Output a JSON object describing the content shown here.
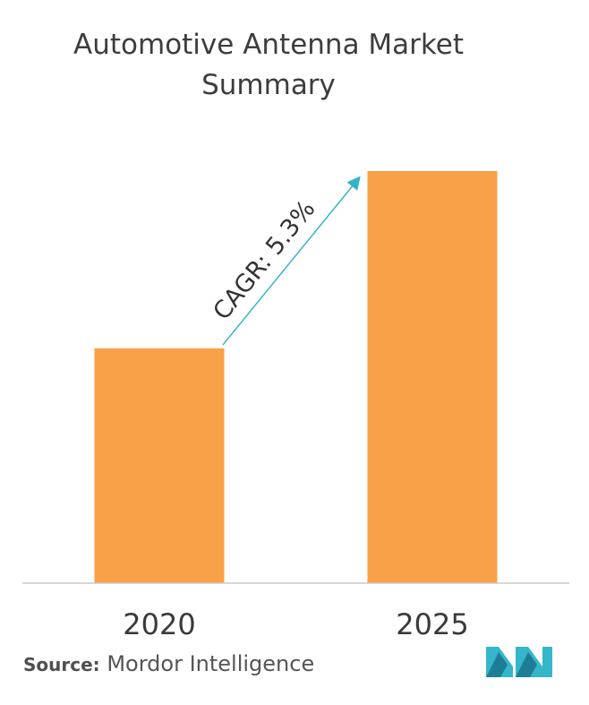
{
  "title": "Automotive Antenna Market Summary",
  "source": {
    "label": "Source:",
    "text": "Mordor Intelligence"
  },
  "annotation": "CAGR: 5.3%",
  "colors": {
    "bar": "#f9a148",
    "arrow": "#33b4c9",
    "axis": "#cccccc",
    "logo": "#35b6cb"
  },
  "icons": {
    "logo": "mordor-intelligence-logo"
  },
  "chart_data": {
    "type": "bar",
    "categories": [
      "2020",
      "2025"
    ],
    "values": [
      0.57,
      1.0
    ],
    "title": "Automotive Antenna Market Summary",
    "xlabel": "",
    "ylabel": "",
    "ylim": [
      0,
      1.0
    ],
    "grid": false,
    "legend": "none",
    "annotations": [
      "CAGR: 5.3%"
    ]
  }
}
